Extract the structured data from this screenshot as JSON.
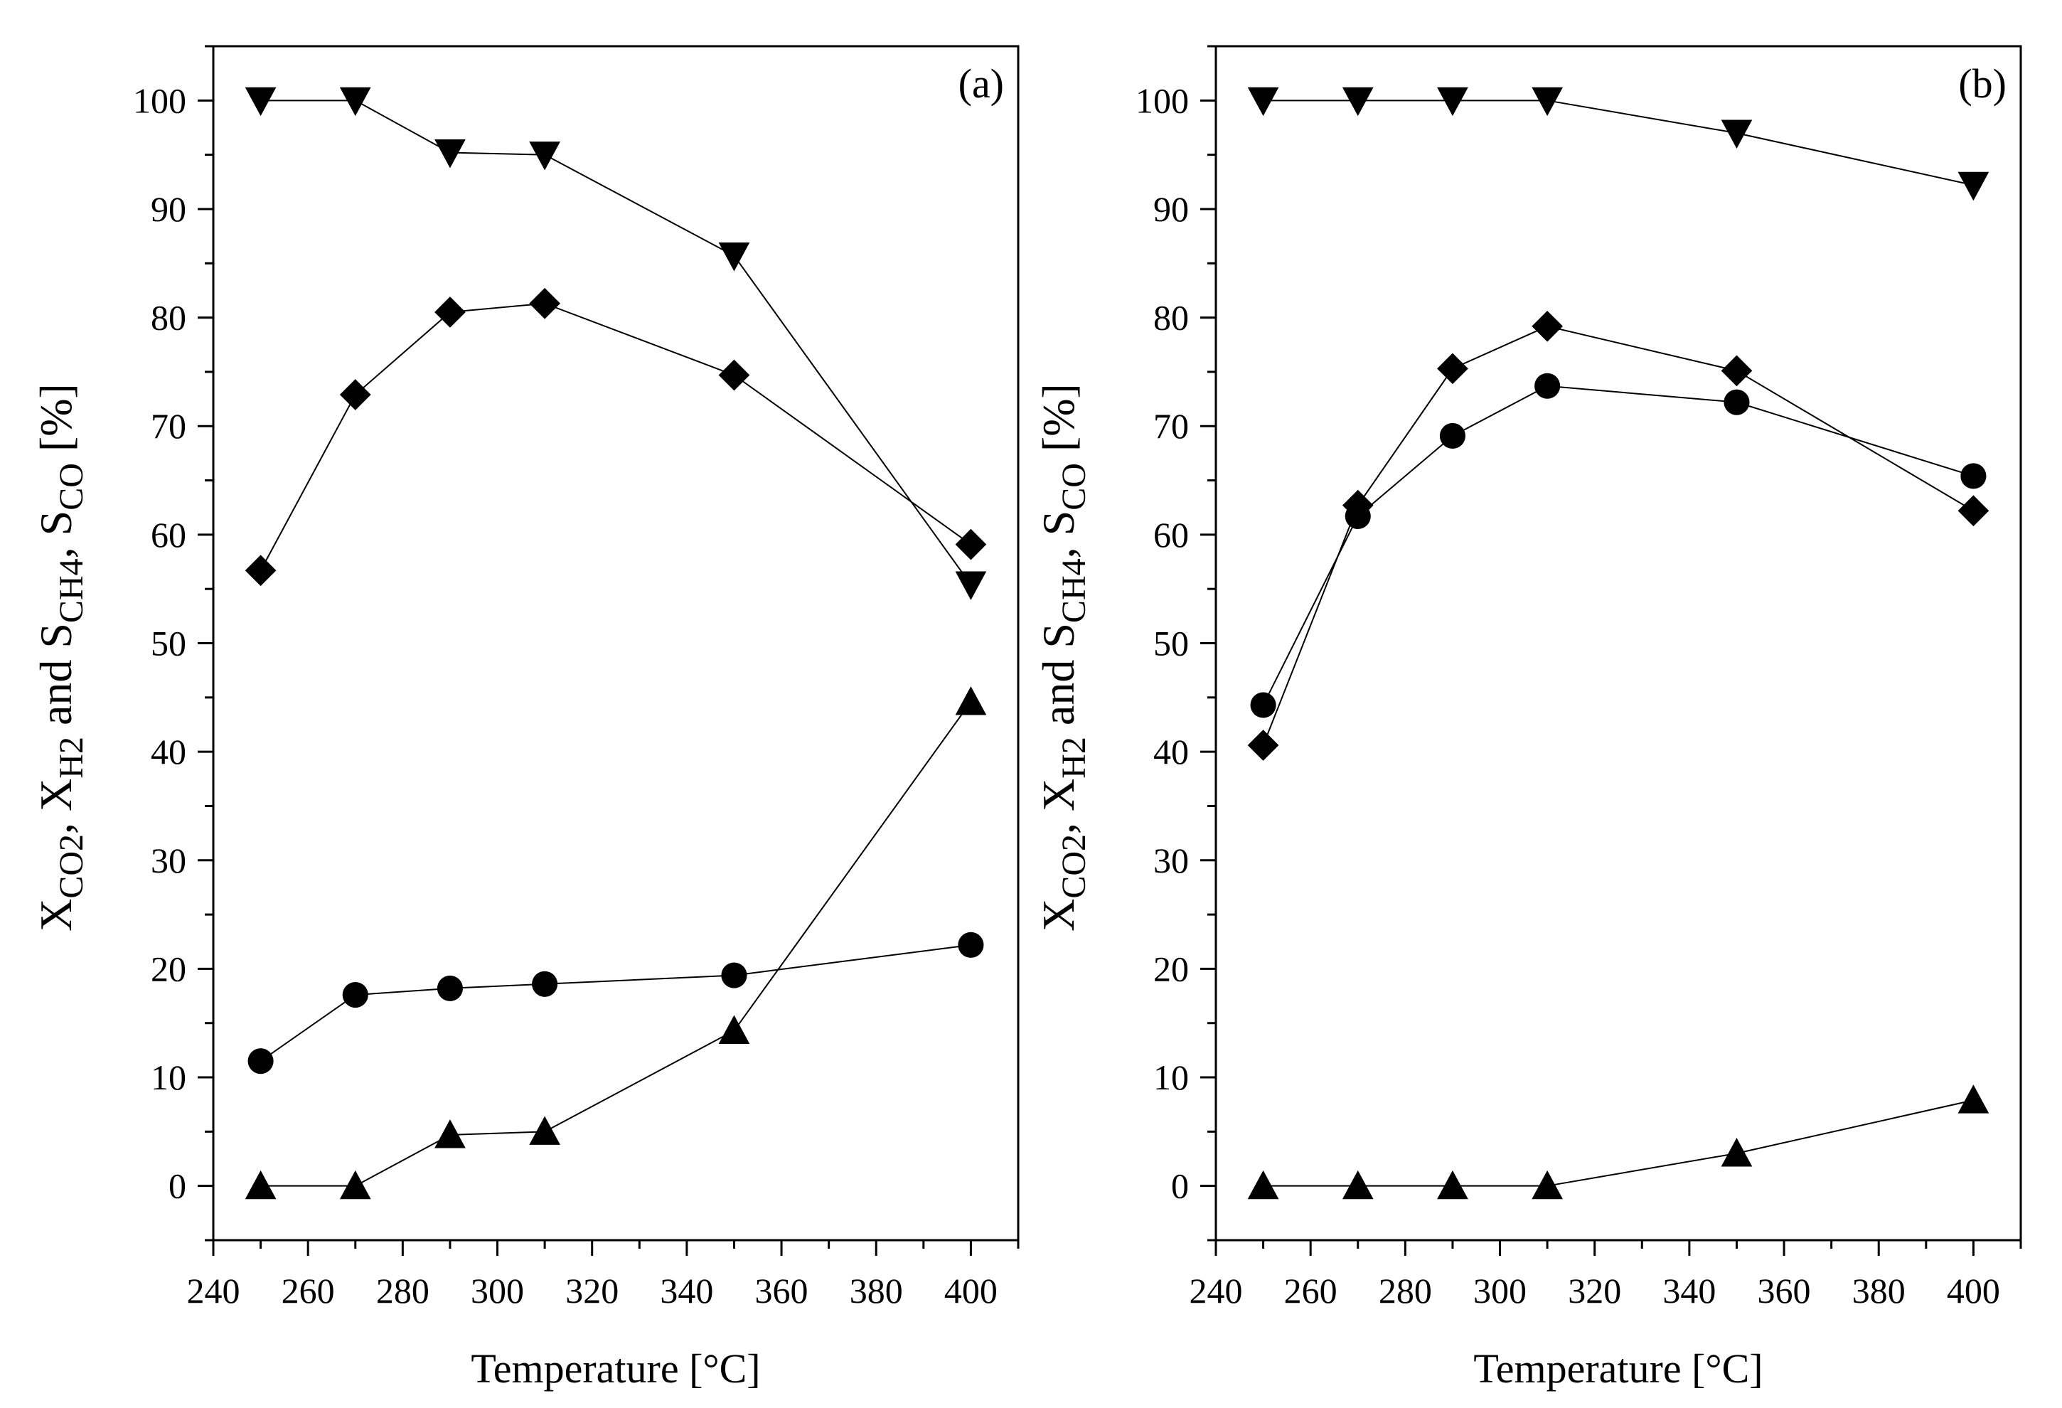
{
  "chart_data": [
    {
      "type": "line",
      "panel_label": "(a)",
      "xlabel": "Temperature [°C]",
      "ylabel": {
        "parts": [
          {
            "t": "X",
            "sub": "CO2"
          },
          {
            "t": ", X",
            "sub": "H2"
          },
          {
            "t": " and S",
            "sub": "CH4"
          },
          {
            "t": ", S",
            "sub": "CO"
          },
          {
            "t": " [%]",
            "sub": ""
          }
        ]
      },
      "xlim": [
        240,
        410
      ],
      "ylim": [
        -5,
        105
      ],
      "xticks": [
        240,
        260,
        280,
        300,
        320,
        340,
        360,
        380,
        400
      ],
      "yticks": [
        0,
        10,
        20,
        30,
        40,
        50,
        60,
        70,
        80,
        90,
        100
      ],
      "grid": false,
      "series": [
        {
          "name": "down-triangle",
          "marker": "triangle-down",
          "x": [
            250,
            270,
            290,
            310,
            350,
            400
          ],
          "values": [
            100,
            100,
            95.2,
            95,
            85.7,
            55.4
          ]
        },
        {
          "name": "diamond",
          "marker": "diamond",
          "x": [
            250,
            270,
            290,
            310,
            350,
            400
          ],
          "values": [
            56.7,
            72.9,
            80.5,
            81.3,
            74.7,
            59.1
          ]
        },
        {
          "name": "circle",
          "marker": "circle",
          "x": [
            250,
            270,
            290,
            310,
            350,
            400
          ],
          "values": [
            11.5,
            17.6,
            18.2,
            18.6,
            19.4,
            22.2
          ]
        },
        {
          "name": "up-triangle",
          "marker": "triangle-up",
          "x": [
            250,
            270,
            290,
            310,
            350,
            400
          ],
          "values": [
            0,
            0,
            4.7,
            5,
            14.3,
            44.6
          ]
        }
      ]
    },
    {
      "type": "line",
      "panel_label": "(b)",
      "xlabel": "Temperature [°C]",
      "ylabel": {
        "parts": [
          {
            "t": "X",
            "sub": "CO2"
          },
          {
            "t": ", X",
            "sub": "H2"
          },
          {
            "t": " and S",
            "sub": "CH4"
          },
          {
            "t": ", S",
            "sub": "CO"
          },
          {
            "t": " [%]",
            "sub": ""
          }
        ]
      },
      "xlim": [
        240,
        410
      ],
      "ylim": [
        -5,
        105
      ],
      "xticks": [
        240,
        260,
        280,
        300,
        320,
        340,
        360,
        380,
        400
      ],
      "yticks": [
        0,
        10,
        20,
        30,
        40,
        50,
        60,
        70,
        80,
        90,
        100
      ],
      "grid": false,
      "series": [
        {
          "name": "down-triangle",
          "marker": "triangle-down",
          "x": [
            250,
            270,
            290,
            310,
            350,
            400
          ],
          "values": [
            100,
            100,
            100,
            100,
            97,
            92.2
          ]
        },
        {
          "name": "diamond",
          "marker": "diamond",
          "x": [
            250,
            270,
            290,
            310,
            350,
            400
          ],
          "values": [
            40.6,
            62.7,
            75.3,
            79.2,
            75.1,
            62.2
          ]
        },
        {
          "name": "circle",
          "marker": "circle",
          "x": [
            250,
            270,
            290,
            310,
            350,
            400
          ],
          "values": [
            44.3,
            61.7,
            69.1,
            73.7,
            72.2,
            65.4
          ]
        },
        {
          "name": "up-triangle",
          "marker": "triangle-up",
          "x": [
            250,
            270,
            290,
            310,
            350,
            400
          ],
          "values": [
            0,
            0,
            0,
            0,
            3,
            7.9
          ]
        }
      ]
    }
  ]
}
